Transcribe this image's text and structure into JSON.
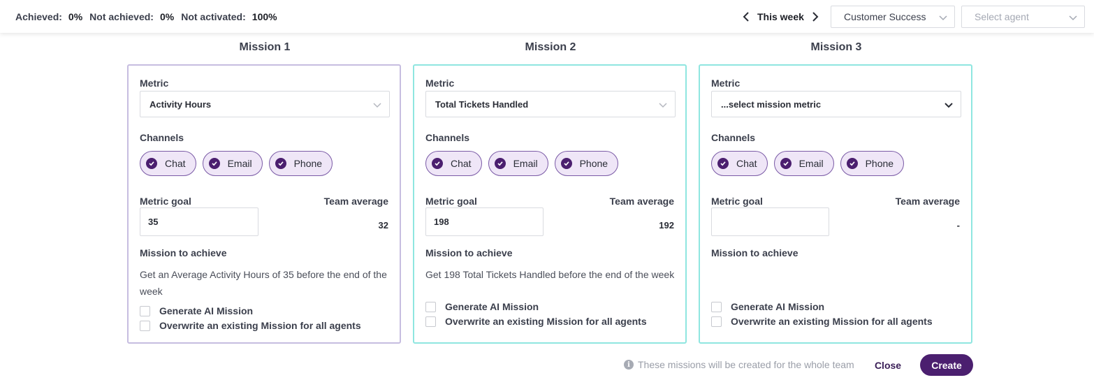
{
  "header": {
    "stats": [
      {
        "label": "Achieved:",
        "value": "0%"
      },
      {
        "label": "Not achieved:",
        "value": "0%"
      },
      {
        "label": "Not activated:",
        "value": "100%"
      }
    ],
    "week_label": "This week",
    "team_select": {
      "value": "Customer Success"
    },
    "agent_select": {
      "placeholder": "Select agent"
    }
  },
  "missions": [
    {
      "title": "Mission 1",
      "metric_label": "Metric",
      "metric_value": "Activity Hours",
      "channels_label": "Channels",
      "channels": [
        "Chat",
        "Email",
        "Phone"
      ],
      "goal_label": "Metric goal",
      "goal_value": "35",
      "team_average_label": "Team average",
      "team_average_value": "32",
      "mission_label": "Mission to achieve",
      "mission_text": "Get an Average Activity Hours of 35 before the end of the week",
      "ai_label": "Generate AI Mission",
      "overwrite_label": "Overwrite an existing Mission for all agents"
    },
    {
      "title": "Mission 2",
      "metric_label": "Metric",
      "metric_value": "Total Tickets Handled",
      "channels_label": "Channels",
      "channels": [
        "Chat",
        "Email",
        "Phone"
      ],
      "goal_label": "Metric goal",
      "goal_value": "198",
      "team_average_label": "Team average",
      "team_average_value": "192",
      "mission_label": "Mission to achieve",
      "mission_text": "Get 198 Total Tickets Handled before the end of the week",
      "ai_label": "Generate AI Mission",
      "overwrite_label": "Overwrite an existing Mission for all agents"
    },
    {
      "title": "Mission 3",
      "metric_label": "Metric",
      "metric_value": "...select mission metric",
      "channels_label": "Channels",
      "channels": [
        "Chat",
        "Email",
        "Phone"
      ],
      "goal_label": "Metric goal",
      "goal_value": "",
      "team_average_label": "Team average",
      "team_average_value": "-",
      "mission_label": "Mission to achieve",
      "mission_text": "",
      "ai_label": "Generate AI Mission",
      "overwrite_label": "Overwrite an existing Mission for all agents"
    }
  ],
  "footer": {
    "info_icon": "i",
    "note": "These missions will be created for the whole team",
    "close_label": "Close",
    "create_label": "Create"
  },
  "colors": {
    "accent": "#4b1f6f",
    "chip_bg": "#efe6f7",
    "card_border_1": "#c6bde0",
    "card_border_teal": "#8fe6e0"
  }
}
